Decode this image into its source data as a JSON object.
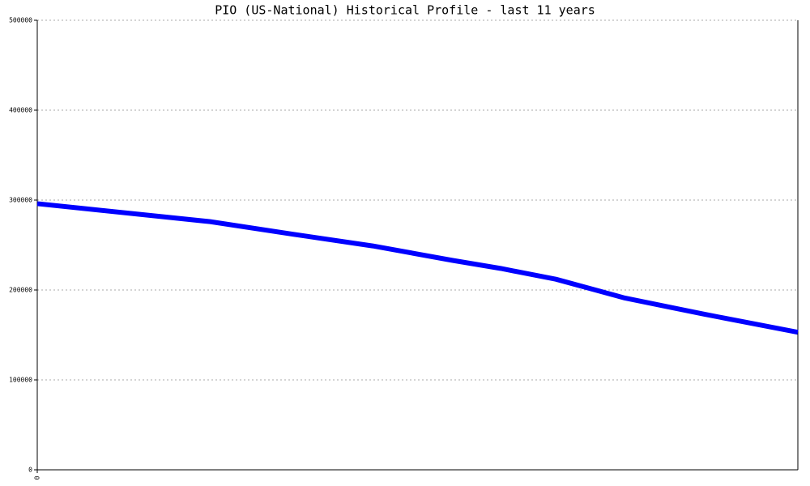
{
  "chart_data": {
    "type": "line",
    "title": "PIO (US-National) Historical Profile - last 11 years",
    "x": [
      0,
      2.5,
      3.7,
      4.85,
      6,
      6.7,
      7.5,
      8.5,
      9.65,
      11
    ],
    "series": [
      {
        "color": "#0000ff",
        "values": [
          296000,
          276000,
          262000,
          249000,
          233000,
          224000,
          212000,
          191000,
          173000,
          153000
        ]
      }
    ],
    "xlim": [
      0,
      11
    ],
    "xticks": [
      0
    ],
    "ylim": [
      0,
      500000
    ],
    "yticks": [
      0,
      100000,
      200000,
      300000,
      400000,
      500000
    ],
    "grid": true
  }
}
